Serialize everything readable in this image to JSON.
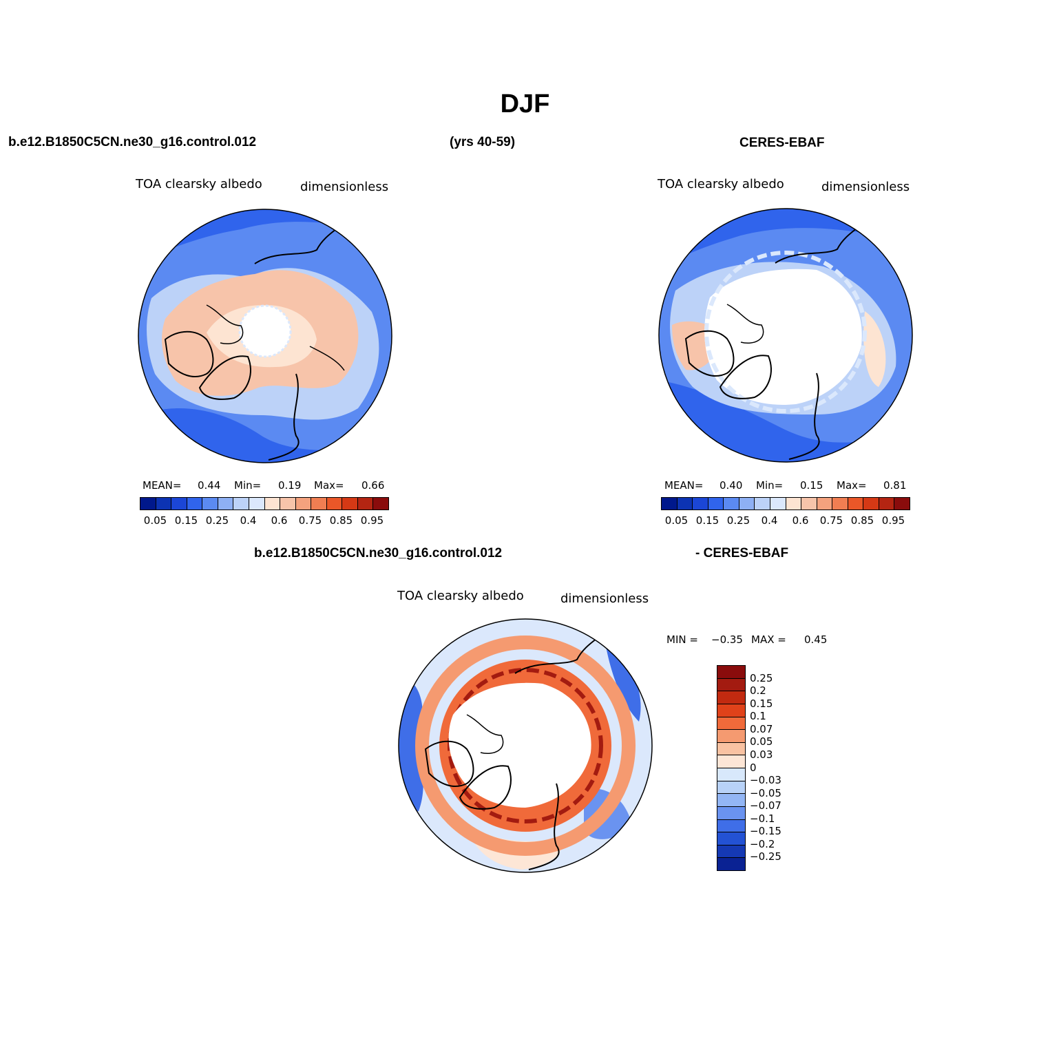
{
  "title": "DJF",
  "panel_model": {
    "header": "b.e12.B1850C5CN.ne30_g16.control.012",
    "years": "(yrs 40-59)",
    "variable": "TOA clearsky albedo",
    "units": "dimensionless",
    "stats": {
      "mean_label": "MEAN=",
      "mean": "0.44",
      "min_label": "Min=",
      "min": "0.19",
      "max_label": "Max=",
      "max": "0.66"
    }
  },
  "panel_obs": {
    "header": "CERES-EBAF",
    "variable": "TOA clearsky albedo",
    "units": "dimensionless",
    "stats": {
      "mean_label": "MEAN=",
      "mean": "0.40",
      "min_label": "Min=",
      "min": "0.15",
      "max_label": "Max=",
      "max": "0.81"
    }
  },
  "panel_diff": {
    "header_left": "b.e12.B1850C5CN.ne30_g16.control.012",
    "header_right": "- CERES-EBAF",
    "variable": "TOA clearsky albedo",
    "units": "dimensionless",
    "stats": {
      "min_label": "MIN =",
      "min": "−0.35",
      "max_label": "MAX =",
      "max": "0.45"
    }
  },
  "colorbar_abs": {
    "colors": [
      "#00188c",
      "#0c33b3",
      "#1b46d6",
      "#3064ec",
      "#5b8af2",
      "#8eb0f4",
      "#bcd2f8",
      "#dbe8fc",
      "#fde4d2",
      "#f7c4aa",
      "#f4a27e",
      "#f07e52",
      "#ea5728",
      "#d53915",
      "#b42512",
      "#8a0c0c"
    ],
    "labels": [
      "0.05",
      "0.15",
      "0.25",
      "0.4",
      "0.6",
      "0.75",
      "0.85",
      "0.95"
    ]
  },
  "colorbar_diff": {
    "colors": [
      "#8a0c0c",
      "#a31b10",
      "#c22a10",
      "#e0421a",
      "#f06a3a",
      "#f59a70",
      "#f9c2a2",
      "#fde6d6",
      "#d8e8fb",
      "#b8d2f8",
      "#93b6f5",
      "#6a93f0",
      "#3f6ee8",
      "#2352d4",
      "#1539b4",
      "#0a2293"
    ],
    "labels": [
      "0.25",
      "0.2",
      "0.15",
      "0.1",
      "0.07",
      "0.05",
      "0.03",
      "0",
      "−0.03",
      "−0.05",
      "−0.07",
      "−0.1",
      "−0.15",
      "−0.2",
      "−0.25"
    ]
  },
  "legend_colors": {
    "dark_blue": "#1b46d6",
    "mid_blue": "#5b8af2",
    "light_blue": "#bcd2f8",
    "pale_blue": "#dbe8fc",
    "pale_orange": "#fde4d2",
    "light_orange": "#f7c4aa",
    "orange": "#f07e52",
    "dark_red": "#b42512"
  }
}
